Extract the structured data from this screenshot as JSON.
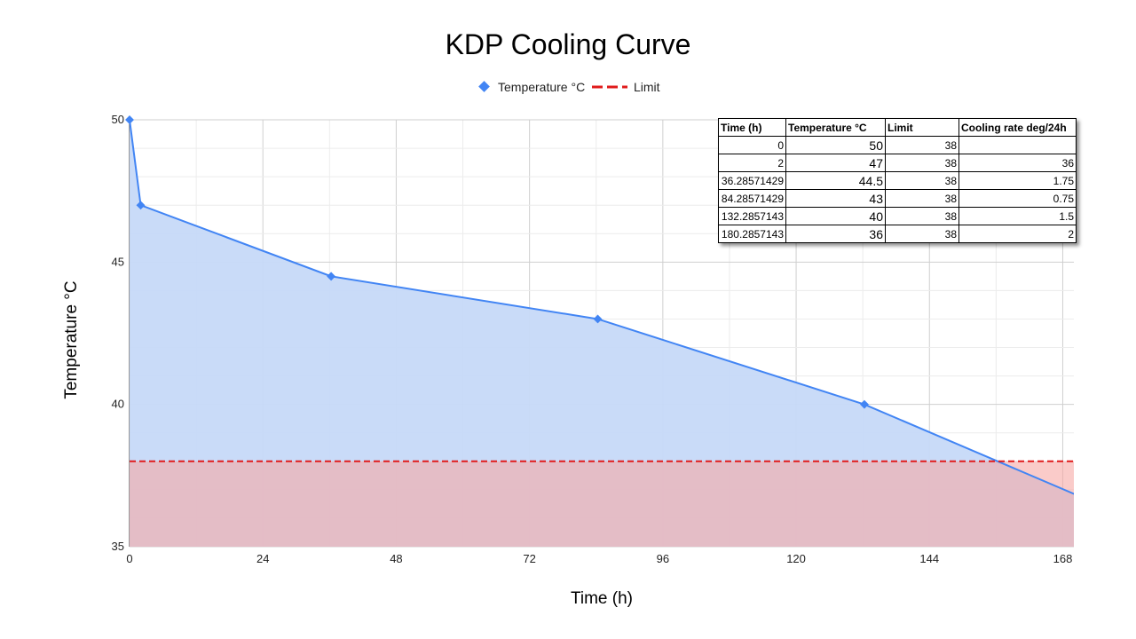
{
  "chart_data": {
    "type": "area",
    "title": "KDP Cooling Curve",
    "xlabel": "Time (h)",
    "ylabel": "Temperature °C",
    "xlim": [
      0,
      170
    ],
    "ylim": [
      35,
      50
    ],
    "x_ticks": [
      "0",
      "24",
      "48",
      "72",
      "96",
      "120",
      "144",
      "168"
    ],
    "y_ticks": [
      "35",
      "40",
      "45",
      "50"
    ],
    "legend_position": "top",
    "grid": true,
    "series": [
      {
        "name": "Temperature °C",
        "color": "#4285f4",
        "fill": "#c6d9f8",
        "marker": "diamond",
        "x": [
          0,
          2,
          36.28571429,
          84.28571429,
          132.2857143,
          180.2857143
        ],
        "y": [
          50,
          47,
          44.5,
          43,
          40,
          36
        ]
      },
      {
        "name": "Limit",
        "color": "#e01b1b",
        "fill": "#f7a8a5",
        "style": "dashed",
        "x": [
          0,
          170
        ],
        "y": [
          38,
          38
        ]
      }
    ]
  },
  "table": {
    "headers": [
      "Time (h)",
      "Temperature °C",
      "Limit",
      "Cooling rate  deg/24h"
    ],
    "rows": [
      [
        "0",
        "50",
        "38",
        ""
      ],
      [
        "2",
        "47",
        "38",
        "36"
      ],
      [
        "36.28571429",
        "44.5",
        "38",
        "1.75"
      ],
      [
        "84.28571429",
        "43",
        "38",
        "0.75"
      ],
      [
        "132.2857143",
        "40",
        "38",
        "1.5"
      ],
      [
        "180.2857143",
        "36",
        "38",
        "2"
      ]
    ]
  }
}
